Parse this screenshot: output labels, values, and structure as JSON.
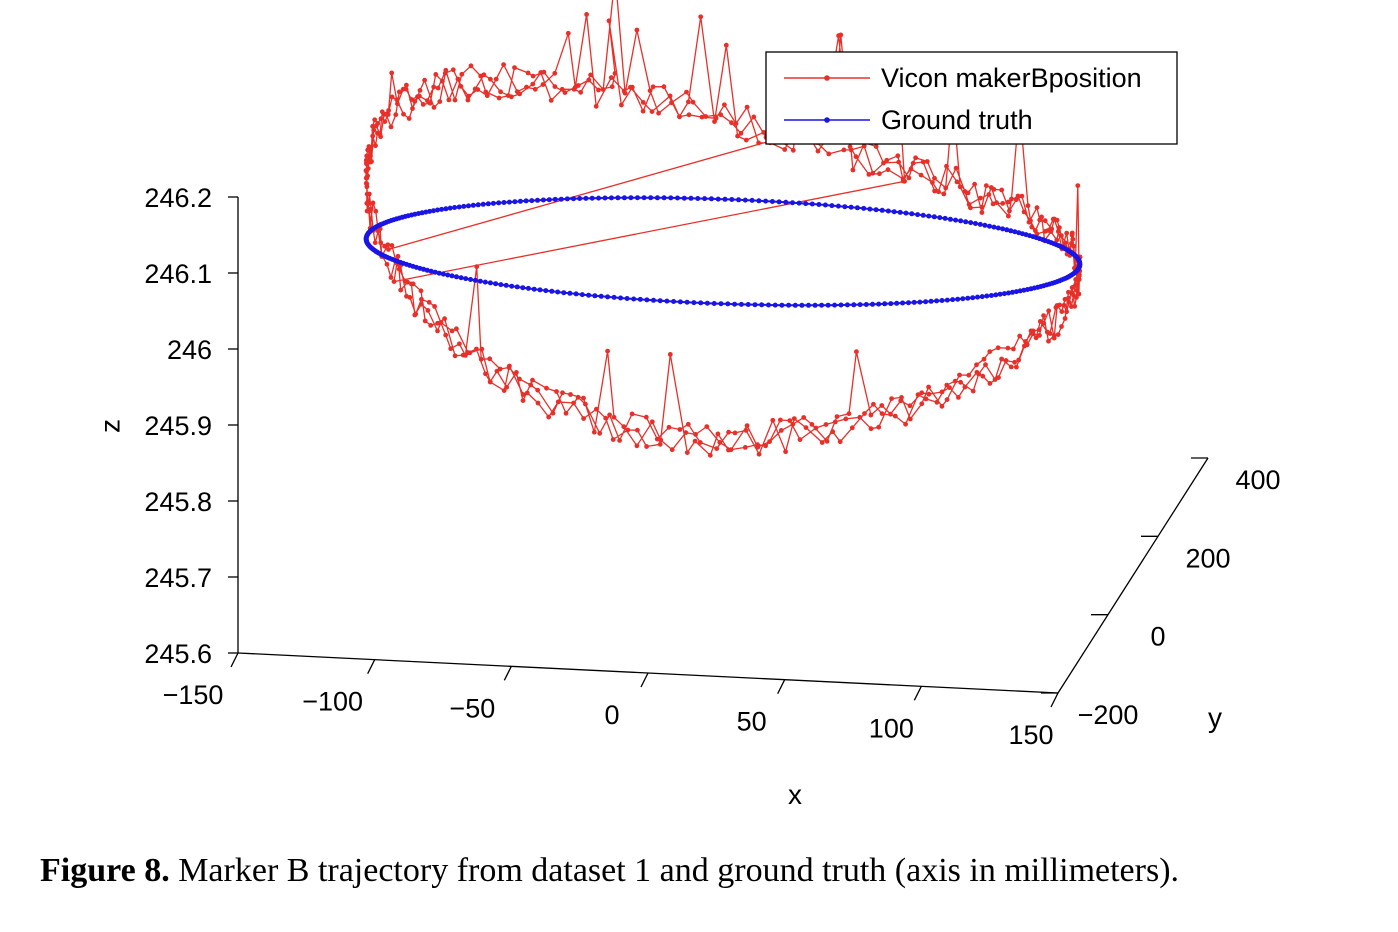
{
  "chart_data": {
    "type": "line",
    "projection": "3d",
    "xlabel": "x",
    "ylabel": "y",
    "zlabel": "z",
    "xlim": [
      -150,
      150
    ],
    "ylim": [
      -200,
      400
    ],
    "zlim": [
      245.6,
      246.2
    ],
    "xticks": [
      "−150",
      "−100",
      "−50",
      "0",
      "50",
      "100",
      "150"
    ],
    "yticks": [
      "−200",
      "0",
      "200",
      "400"
    ],
    "zticks": [
      "245.6",
      "245.7",
      "245.8",
      "245.9",
      "246",
      "246.1",
      "246.2"
    ],
    "legend": {
      "placement": "top-right",
      "entries": [
        "Vicon makerBposition",
        "Ground truth"
      ]
    },
    "series": [
      {
        "name": "Vicon makerBposition",
        "color": "#e8302a",
        "marker": "dot",
        "shape": "noisy elliptical loop around the ground-truth circle, z varying between about 245.82 and 246.19 with sinusoidal tilt (high near x≈−60, low near x≈+120)",
        "points_sampled": [
          {
            "x": -120,
            "y": 100,
            "z": 246.0
          },
          {
            "x": -100,
            "y": 240,
            "z": 246.13
          },
          {
            "x": -60,
            "y": 300,
            "z": 246.16
          },
          {
            "x": -30,
            "y": 305,
            "z": 246.14
          },
          {
            "x": 20,
            "y": 280,
            "z": 246.08
          },
          {
            "x": 70,
            "y": 240,
            "z": 246.03
          },
          {
            "x": 110,
            "y": 170,
            "z": 245.96
          },
          {
            "x": 140,
            "y": 100,
            "z": 245.9
          },
          {
            "x": 115,
            "y": -30,
            "z": 245.85
          },
          {
            "x": 50,
            "y": -80,
            "z": 245.94
          },
          {
            "x": -20,
            "y": -90,
            "z": 245.87
          },
          {
            "x": -90,
            "y": -60,
            "z": 245.84
          },
          {
            "x": -125,
            "y": 40,
            "z": 245.93
          }
        ]
      },
      {
        "name": "Ground truth",
        "color": "#1a14e6",
        "marker": "dot",
        "shape": "circle centered at (0, 100) with radius ≈130 at constant z = 246.0",
        "center": {
          "x": 0,
          "y": 100
        },
        "radius": 130,
        "z": 246.0
      }
    ]
  },
  "caption": {
    "label": "Figure 8.",
    "text": " Marker B trajectory from dataset 1 and ground truth (axis in millimeters)."
  }
}
